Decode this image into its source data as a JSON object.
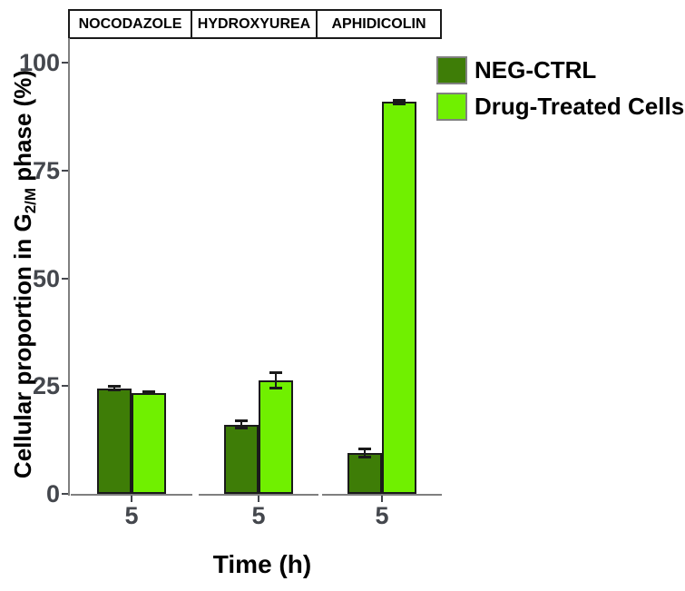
{
  "chart_data": {
    "type": "bar",
    "title": "",
    "categories": [
      "NOCODAZOLE",
      "HYDROXYUREA",
      "APHIDICOLIN"
    ],
    "facet_x_tick_label": "5",
    "xlabel": "Time (h)",
    "ylabel": "Cellular proportion in G2/M phase (%)",
    "ylabel_parts": {
      "pre": "Cellular proportion in G",
      "sub": "2/M",
      "post": " phase (%)"
    },
    "yticks": [
      0,
      25,
      50,
      75,
      100
    ],
    "ylim": [
      0,
      100
    ],
    "grid": false,
    "legend_position": "top-right-inside",
    "series": [
      {
        "name": "NEG-CTRL",
        "color": "#3E7D07",
        "values": [
          24.5,
          16.1,
          9.5
        ],
        "errors": [
          0.6,
          0.9,
          1.1
        ]
      },
      {
        "name": "Drug-Treated Cells",
        "color": "#70F000",
        "values": [
          23.4,
          26.4,
          90.9
        ],
        "errors": [
          0.3,
          1.9,
          0.5
        ]
      }
    ]
  },
  "colors": {
    "dark_green": "#3E7D07",
    "bright_green": "#70F000",
    "bar_border": "#1A1A1A",
    "axis_line": "#7F7F7F",
    "tick_text": "#44474D",
    "text": "#000000",
    "legend_swatch_border": "#808080",
    "background": "#FFFFFF"
  }
}
